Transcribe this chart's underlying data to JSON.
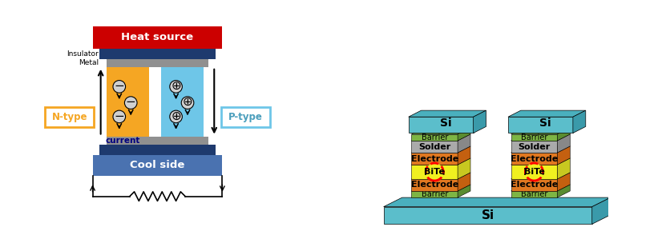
{
  "background_color": "#ffffff",
  "left_panel": {
    "heat_source_color": "#cc0000",
    "heat_source_label": "Heat source",
    "cool_side_color": "#4a72b0",
    "cool_side_label": "Cool side",
    "n_type_color": "#f5a623",
    "p_type_color": "#6ec6e8",
    "insulator_color": "#1e3a6e",
    "metal_color": "#909090",
    "n_label": "N-type",
    "p_label": "P-type",
    "insulator_label": "Insulator",
    "metal_label": "Metal",
    "current_label": "current"
  },
  "right_panel": {
    "si_color": "#5bbecb",
    "barrier_color": "#7db544",
    "electrode_color": "#e07820",
    "solder_color": "#aaaaaa",
    "bite_color": "#f0f020",
    "orange_side_color": "#c46010"
  }
}
